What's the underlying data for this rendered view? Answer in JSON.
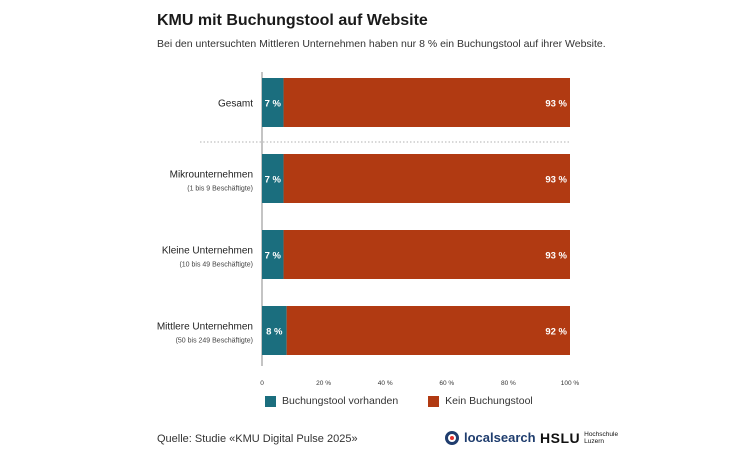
{
  "header": {
    "title": "KMU mit Buchungstool auf Website",
    "subtitle": "Bei den untersuchten Mittleren Unternehmen haben nur 8 % ein Buchungstool auf ihrer Website."
  },
  "chart_data": {
    "type": "bar",
    "orientation": "horizontal",
    "stacked": true,
    "title": "KMU mit Buchungstool auf Website",
    "categories": [
      {
        "label": "Gesamt",
        "sublabel": ""
      },
      {
        "label": "Mikrounternehmen",
        "sublabel": "(1 bis 9 Beschäftigte)"
      },
      {
        "label": "Kleine Unternehmen",
        "sublabel": "(10 bis 49 Beschäftigte)"
      },
      {
        "label": "Mittlere Unternehmen",
        "sublabel": "(50 bis 249 Beschäftigte)"
      }
    ],
    "series": [
      {
        "name": "Buchungstool vorhanden",
        "color": "#1b6e7e",
        "values": [
          7,
          7,
          7,
          8
        ]
      },
      {
        "name": "Kein Buchungstool",
        "color": "#b13a12",
        "values": [
          93,
          93,
          93,
          92
        ]
      }
    ],
    "xlim": [
      0,
      100
    ],
    "xticks": [
      "0",
      "20 %",
      "40 %",
      "60 %",
      "80 %",
      "100 %"
    ],
    "xtick_values": [
      0,
      20,
      40,
      60,
      80,
      100
    ],
    "legend_position": "bottom",
    "separator_after_first": true
  },
  "legend": {
    "items": [
      {
        "label": "Buchungstool vorhanden",
        "color": "#1b6e7e"
      },
      {
        "label": "Kein Buchungstool",
        "color": "#b13a12"
      }
    ]
  },
  "footer": {
    "source": "Quelle: Studie «KMU Digital Pulse 2025»",
    "logo_localsearch": "localsearch",
    "logo_hslu": "HSLU",
    "logo_hslu_sub1": "Hochschule",
    "logo_hslu_sub2": "Luzern"
  }
}
